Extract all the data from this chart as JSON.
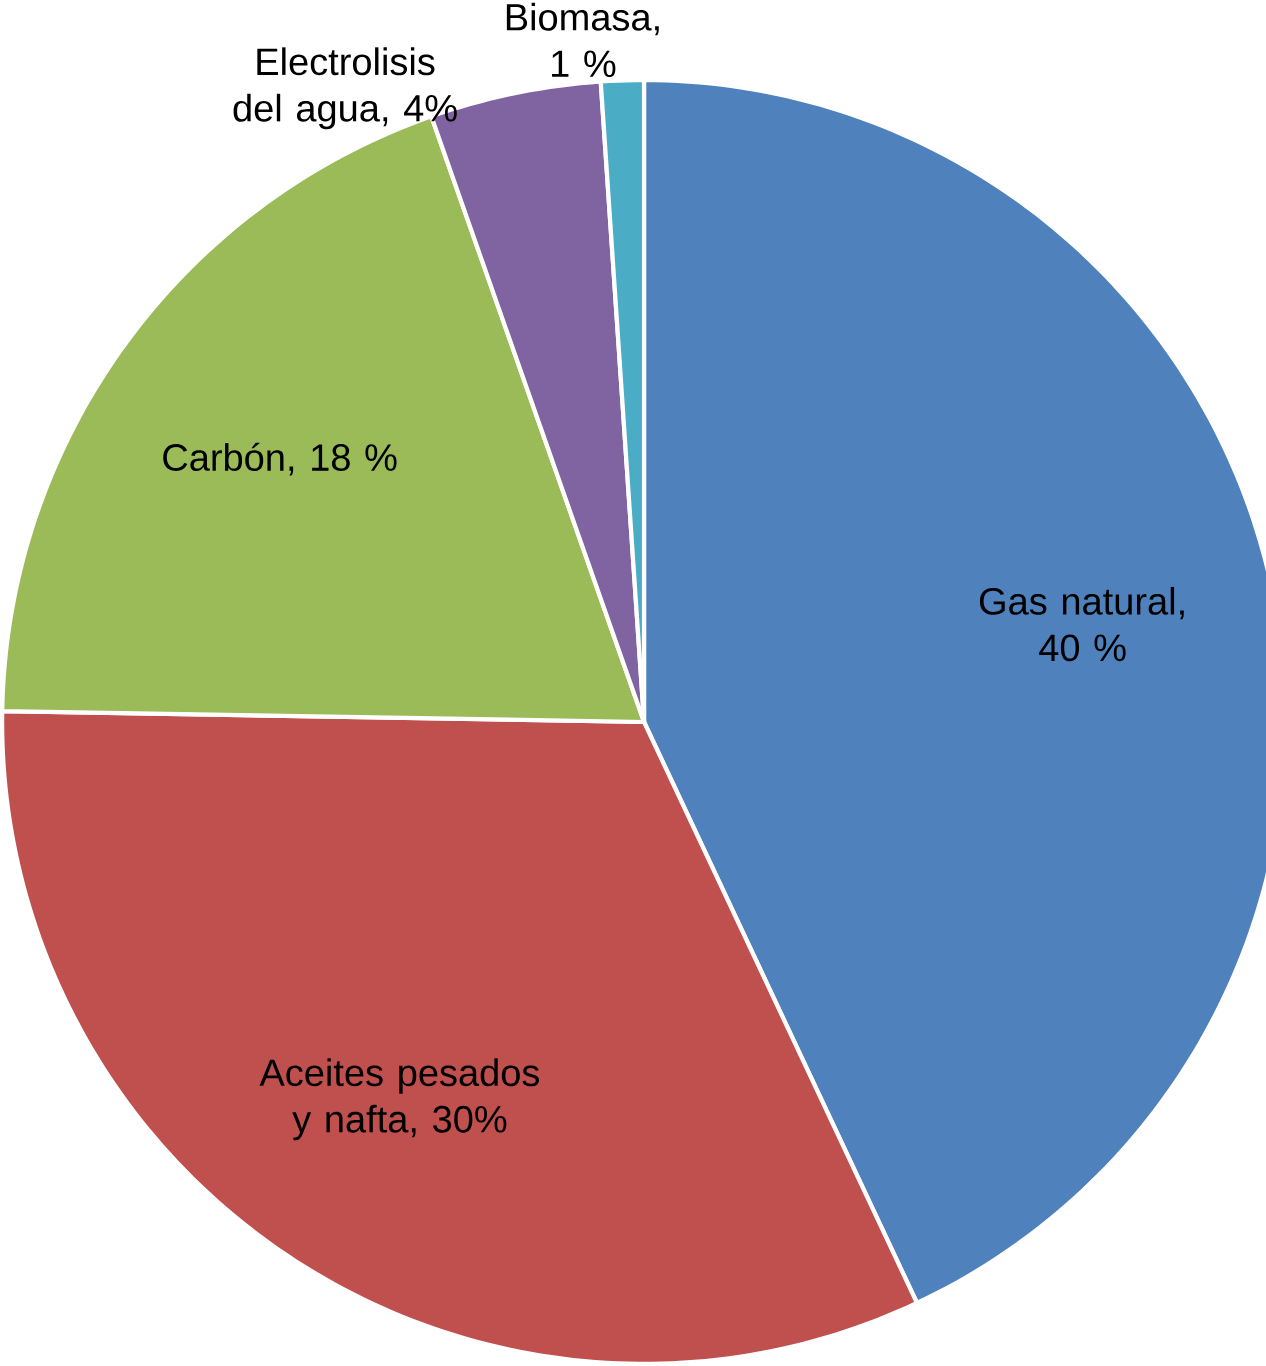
{
  "chart_data": {
    "type": "pie",
    "categories": [
      "Gas natural",
      "Aceites pesados y nafta",
      "Carbón",
      "Electrolisis del agua",
      "Biomasa"
    ],
    "values": [
      40,
      30,
      18,
      4,
      1
    ],
    "value_labels": [
      ", 40 %",
      ", 30%",
      ", 18 %",
      ", 4%",
      ", 1 %"
    ],
    "colors": [
      "#4f81bd",
      "#c0504d",
      "#9bbb59",
      "#8064a2",
      "#4bacc6"
    ]
  }
}
